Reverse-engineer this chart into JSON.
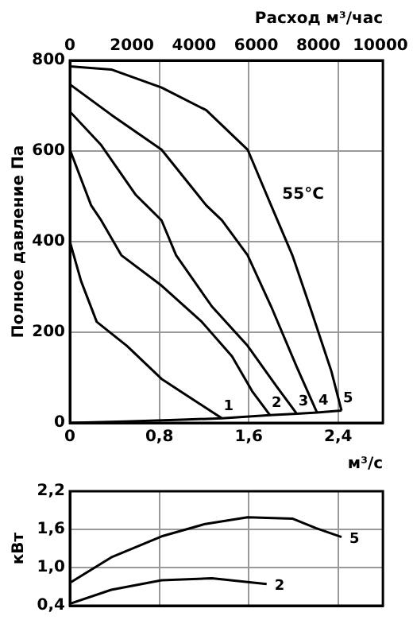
{
  "chart_data": [
    {
      "type": "line",
      "xlabel": "м³/с",
      "ylabel": "Полное давление Па",
      "x2label": "Расход м³/час",
      "xlim": [
        0,
        2.8
      ],
      "xticks": [
        0,
        {
          "value": 0.8,
          "label": "0,8"
        },
        {
          "value": 1.6,
          "label": "1,6"
        },
        {
          "value": 2.4,
          "label": "2,4"
        }
      ],
      "x2lim": [
        0,
        10080
      ],
      "x2ticks": [
        0,
        2000,
        4000,
        6000,
        8000,
        10000
      ],
      "ylim": [
        0,
        800
      ],
      "yticks": [
        0,
        200,
        400,
        600,
        800
      ],
      "grid": true,
      "annotations": [
        {
          "text": "55°C",
          "x": 1.8,
          "y": 480
        }
      ],
      "series": [
        {
          "name": "1",
          "color": "#000000",
          "x": [
            0,
            0.1,
            0.24,
            0.51,
            0.82,
            1.13,
            1.36
          ],
          "values": [
            400,
            313,
            223,
            170,
            97,
            47,
            10
          ]
        },
        {
          "name": "2",
          "color": "#000000",
          "x": [
            0,
            0.19,
            0.28,
            0.46,
            0.82,
            1.18,
            1.45,
            1.63,
            1.79
          ],
          "values": [
            603,
            480,
            447,
            370,
            303,
            223,
            147,
            70,
            17
          ]
        },
        {
          "name": "3",
          "color": "#000000",
          "x": [
            0,
            0.28,
            0.59,
            0.82,
            0.95,
            1.27,
            1.59,
            1.85,
            2.03
          ],
          "values": [
            687,
            613,
            503,
            447,
            370,
            257,
            170,
            80,
            20
          ]
        },
        {
          "name": "4",
          "color": "#000000",
          "x": [
            0,
            0.37,
            0.82,
            1.22,
            1.36,
            1.59,
            1.8,
            2.03,
            2.21
          ],
          "values": [
            747,
            680,
            603,
            480,
            447,
            370,
            257,
            123,
            23
          ]
        },
        {
          "name": "5",
          "color": "#000000",
          "x": [
            0,
            0.37,
            0.82,
            1.22,
            1.59,
            1.8,
            1.99,
            2.16,
            2.34,
            2.43
          ],
          "values": [
            787,
            780,
            740,
            690,
            603,
            480,
            370,
            247,
            113,
            27
          ]
        },
        {
          "color": "#000000",
          "x": [
            0,
            0.5,
            1.0,
            1.36,
            1.79,
            2.03,
            2.21,
            2.43
          ],
          "values": [
            0,
            3,
            7,
            10,
            17,
            20,
            23,
            27
          ]
        }
      ]
    },
    {
      "type": "line",
      "ylabel": "кВт",
      "xlim": [
        0,
        2.8
      ],
      "xticks": [
        0,
        0.8,
        1.6,
        2.4
      ],
      "ylim": [
        0.4,
        2.2
      ],
      "yticks": [
        {
          "value": 0.4,
          "label": "0,4"
        },
        {
          "value": 1.0,
          "label": "1,0"
        },
        {
          "value": 1.6,
          "label": "1,6"
        },
        {
          "value": 2.2,
          "label": "2,2"
        }
      ],
      "grid": true,
      "tick_labels": "y",
      "series": [
        {
          "name": "5",
          "color": "#000000",
          "x": [
            0,
            0.37,
            0.82,
            1.2,
            1.59,
            1.99,
            2.2,
            2.43
          ],
          "values": [
            0.76,
            1.16,
            1.49,
            1.68,
            1.79,
            1.77,
            1.62,
            1.48
          ]
        },
        {
          "name": "2",
          "color": "#000000",
          "x": [
            0,
            0.37,
            0.82,
            1.27,
            1.76
          ],
          "values": [
            0.43,
            0.65,
            0.8,
            0.83,
            0.74
          ]
        }
      ]
    }
  ]
}
